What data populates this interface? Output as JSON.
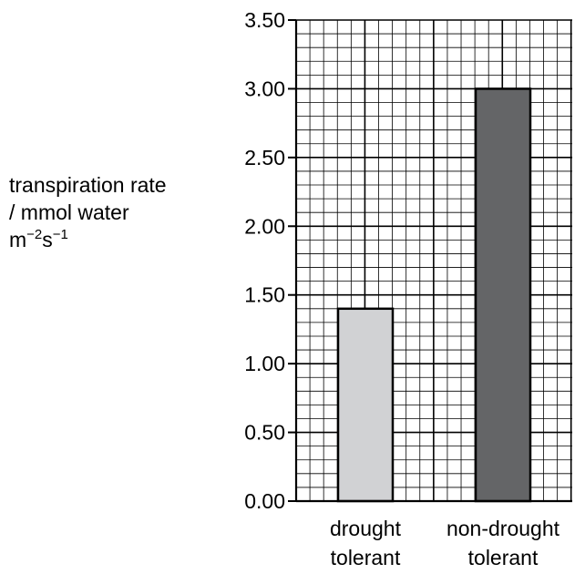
{
  "chart_data": {
    "type": "bar",
    "categories": [
      {
        "line1": "drought",
        "line2": "tolerant"
      },
      {
        "line1": "non-drought",
        "line2": "tolerant"
      }
    ],
    "values": [
      1.4,
      3.0
    ],
    "bar_colors": [
      "#d1d2d4",
      "#646567"
    ],
    "ylim": [
      0,
      3.5
    ],
    "yticks": [
      "0.00",
      "0.50",
      "1.00",
      "1.50",
      "2.00",
      "2.50",
      "3.00",
      "3.50"
    ],
    "ylabel": {
      "line1": "transpiration rate",
      "line2": "/ mmol water",
      "line3_base1": "m",
      "line3_sup1": "−2",
      "line3_base2": "s",
      "line3_sup2": "−1"
    },
    "grid": true
  }
}
